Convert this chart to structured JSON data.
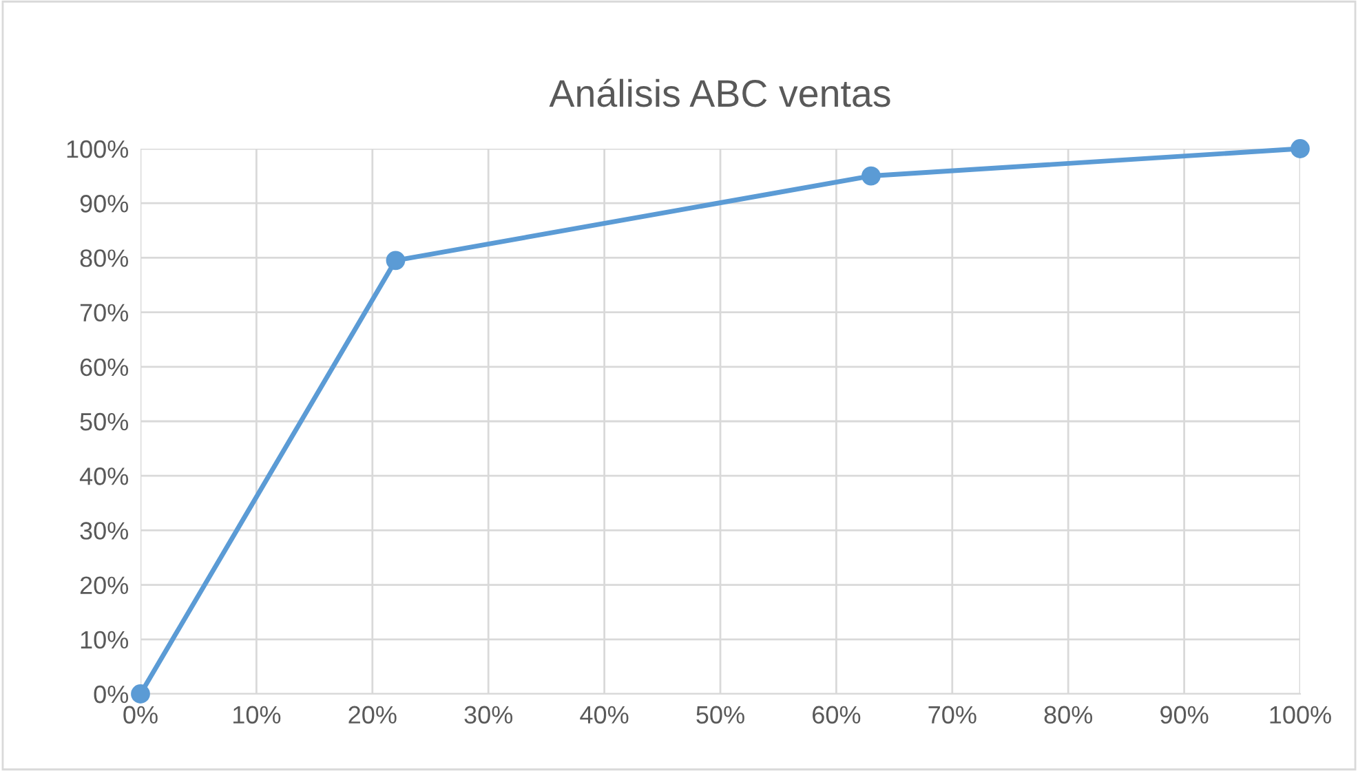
{
  "chart_data": {
    "type": "line",
    "title": "Análisis ABC ventas",
    "x": [
      0,
      22,
      63,
      100
    ],
    "series": [
      {
        "color": "#5b9bd5",
        "values": [
          0,
          79.5,
          95,
          100
        ]
      }
    ],
    "xlim": [
      0,
      100
    ],
    "ylim": [
      0,
      100
    ],
    "xticks": [
      {
        "value": 0,
        "label": "0%"
      },
      {
        "value": 10,
        "label": "10%"
      },
      {
        "value": 20,
        "label": "20%"
      },
      {
        "value": 30,
        "label": "30%"
      },
      {
        "value": 40,
        "label": "40%"
      },
      {
        "value": 50,
        "label": "50%"
      },
      {
        "value": 60,
        "label": "60%"
      },
      {
        "value": 70,
        "label": "70%"
      },
      {
        "value": 80,
        "label": "80%"
      },
      {
        "value": 90,
        "label": "90%"
      },
      {
        "value": 100,
        "label": "100%"
      }
    ],
    "yticks": [
      {
        "value": 0,
        "label": "0%"
      },
      {
        "value": 10,
        "label": "10%"
      },
      {
        "value": 20,
        "label": "20%"
      },
      {
        "value": 30,
        "label": "30%"
      },
      {
        "value": 40,
        "label": "40%"
      },
      {
        "value": 50,
        "label": "50%"
      },
      {
        "value": 60,
        "label": "60%"
      },
      {
        "value": 70,
        "label": "70%"
      },
      {
        "value": 80,
        "label": "80%"
      },
      {
        "value": 90,
        "label": "90%"
      },
      {
        "value": 100,
        "label": "100%"
      }
    ],
    "grid": true,
    "marker": "circle",
    "line_style": "solid",
    "legend": false
  }
}
